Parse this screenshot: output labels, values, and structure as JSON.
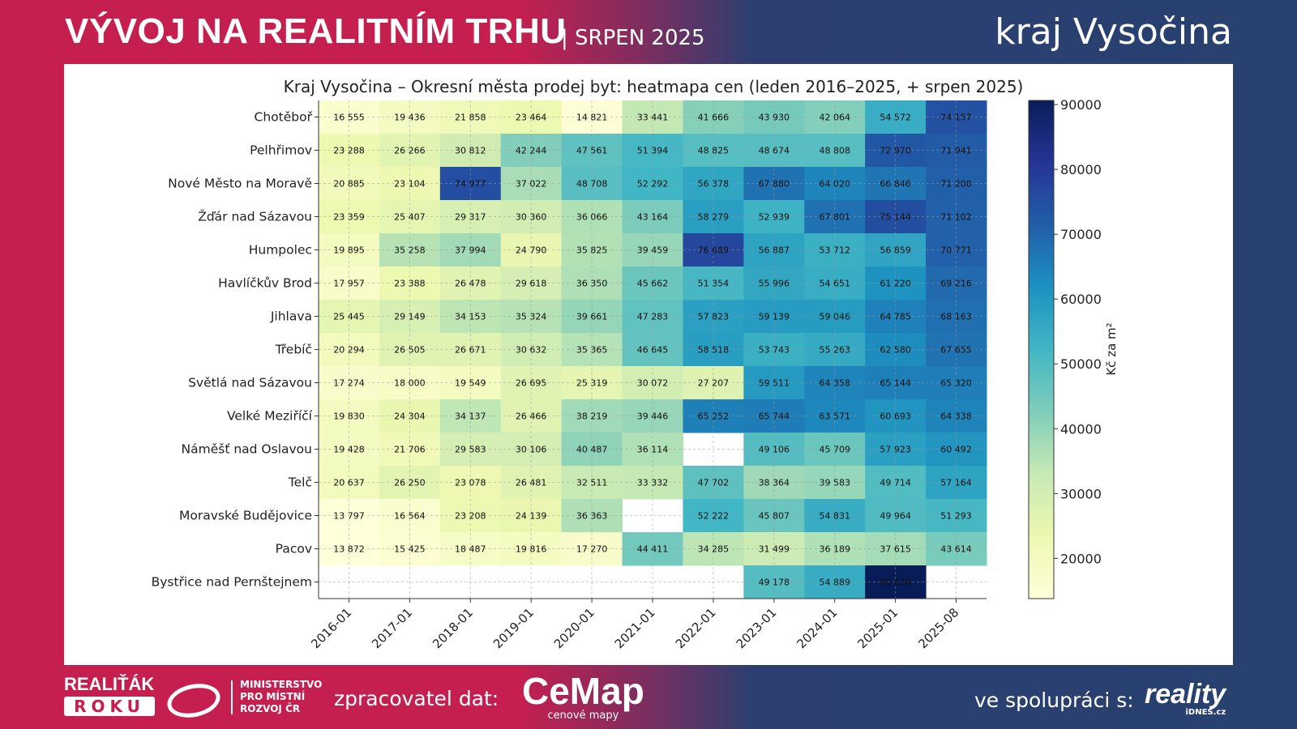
{
  "header": {
    "title": "VÝVOJ NA REALITNÍM TRHU",
    "subtitle": "| SRPEN 2025",
    "region": "kraj Vysočina"
  },
  "footer": {
    "logo1_line1": "REALIŤÁK",
    "logo1_line2": "ROKU",
    "ministry": [
      "MINISTERSTVO",
      "PRO MÍSTNÍ",
      "ROZVOJ ČR"
    ],
    "processor_label": "zpracovatel dat:",
    "cemap": "CeMap",
    "cemap_sub": "cenové mapy",
    "partner_label": "ve spolupráci s:",
    "reality": "reality",
    "reality_sub": "iDNES.cz"
  },
  "chart_data": {
    "type": "heatmap",
    "title": "Kraj Vysočina – Okresní města prodej byt: heatmapa cen (leden 2016–2025, + srpen 2025)",
    "x": [
      "2016-01",
      "2017-01",
      "2018-01",
      "2019-01",
      "2020-01",
      "2021-01",
      "2022-01",
      "2023-01",
      "2024-01",
      "2025-01",
      "2025-08"
    ],
    "y": [
      "Chotěboř",
      "Pelhřimov",
      "Nové Město na Moravě",
      "Žďár nad Sázavou",
      "Humpolec",
      "Havlíčkův Brod",
      "Jihlava",
      "Třebíč",
      "Světlá nad Sázavou",
      "Velké Meziříčí",
      "Náměšť nad Oslavou",
      "Telč",
      "Moravské Budějovice",
      "Pacov",
      "Bystřice nad Pernštejnem"
    ],
    "values": [
      [
        16555,
        19436,
        21858,
        23464,
        14821,
        33441,
        41666,
        43930,
        42064,
        54572,
        74157
      ],
      [
        23288,
        26266,
        30812,
        42244,
        47561,
        51394,
        48825,
        48674,
        48808,
        72970,
        71941
      ],
      [
        20885,
        23104,
        74977,
        37022,
        48708,
        52292,
        56378,
        67880,
        64020,
        66846,
        71200
      ],
      [
        23359,
        25407,
        29317,
        30360,
        36066,
        43164,
        58279,
        52939,
        67801,
        75144,
        71102
      ],
      [
        19895,
        35258,
        37994,
        24790,
        35825,
        39459,
        76689,
        56887,
        53712,
        56859,
        70771
      ],
      [
        17957,
        23388,
        26478,
        29618,
        36350,
        45662,
        51354,
        55996,
        54651,
        61220,
        69216
      ],
      [
        25445,
        29149,
        34153,
        35324,
        39661,
        47283,
        57823,
        59139,
        59046,
        64785,
        68163
      ],
      [
        20294,
        26505,
        26671,
        30632,
        35365,
        46645,
        58518,
        53743,
        55263,
        62580,
        67655
      ],
      [
        17274,
        18000,
        19549,
        26695,
        25319,
        30072,
        27207,
        59511,
        64358,
        65144,
        65320
      ],
      [
        19830,
        24304,
        34137,
        26466,
        38219,
        39446,
        65252,
        65744,
        63571,
        60693,
        64338
      ],
      [
        19428,
        21706,
        29583,
        30106,
        40487,
        36114,
        null,
        49106,
        45709,
        57923,
        60492
      ],
      [
        20637,
        26250,
        23078,
        26481,
        32511,
        33332,
        47702,
        38364,
        39583,
        49714,
        57164
      ],
      [
        13797,
        16564,
        23208,
        24139,
        36363,
        null,
        52222,
        45807,
        54831,
        49964,
        51293
      ],
      [
        13872,
        15425,
        18487,
        19816,
        17270,
        44411,
        34285,
        31499,
        36189,
        37615,
        43614
      ],
      [
        null,
        null,
        null,
        null,
        null,
        null,
        null,
        49178,
        54889,
        90638,
        null
      ]
    ],
    "colorbar": {
      "label": "Kč za m²",
      "ticks": [
        20000,
        30000,
        40000,
        50000,
        60000,
        70000,
        80000,
        90000
      ],
      "range": [
        13797,
        90638
      ],
      "colormap": [
        "#ffffd9",
        "#edf8b1",
        "#c7e9b4",
        "#7fcdbb",
        "#41b6c4",
        "#1d91c0",
        "#225ea8",
        "#253494",
        "#081d58"
      ]
    },
    "grid": true
  }
}
